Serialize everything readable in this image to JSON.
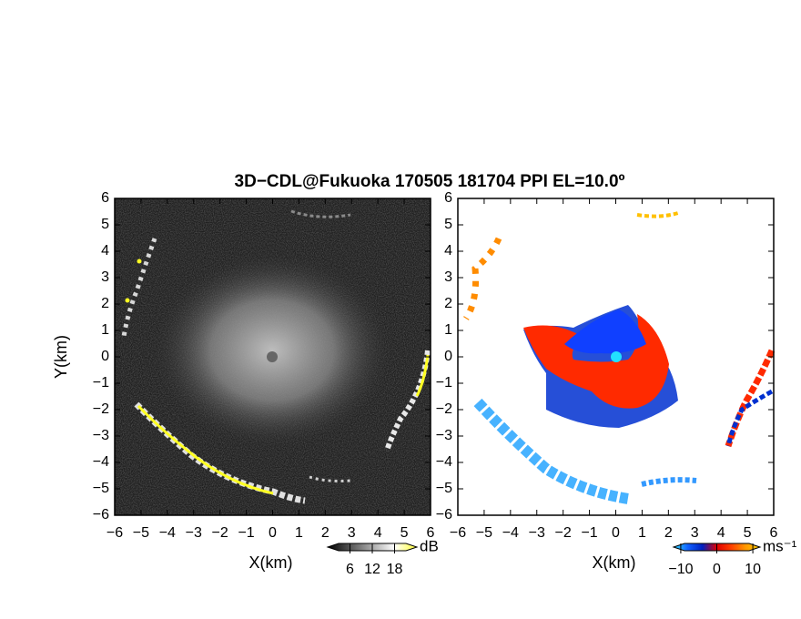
{
  "title": "3D−CDL@Fukuoka 170505 181704 PPI EL=10.0º",
  "chart_data": [
    {
      "type": "ppi",
      "xlabel": "X(km)",
      "ylabel": "Y(km)",
      "xlim": [
        -6,
        6
      ],
      "ylim": [
        -6,
        6
      ],
      "xticks": [
        {
          "value": -6,
          "label": "−6"
        },
        {
          "value": -5,
          "label": "−5"
        },
        {
          "value": -4,
          "label": "−4"
        },
        {
          "value": -3,
          "label": "−3"
        },
        {
          "value": -2,
          "label": "−2"
        },
        {
          "value": -1,
          "label": "−1"
        },
        0,
        1,
        2,
        3,
        4,
        5,
        6
      ],
      "yticks": [
        {
          "value": -6,
          "label": "−6"
        },
        {
          "value": -5,
          "label": "−5"
        },
        {
          "value": -4,
          "label": "−4"
        },
        {
          "value": -3,
          "label": "−3"
        },
        {
          "value": -2,
          "label": "−2"
        },
        {
          "value": -1,
          "label": "−1"
        },
        0,
        1,
        2,
        3,
        4,
        5,
        6
      ],
      "colorbar": {
        "label": "dB",
        "lim": [
          0,
          24
        ],
        "ticks": [
          6,
          12,
          18
        ],
        "colors": [
          "#000000",
          "#555555",
          "#aaaaaa",
          "#ffffff",
          "#ffff33"
        ]
      }
    },
    {
      "type": "ppi",
      "xlabel": "X(km)",
      "xlim": [
        -6,
        6
      ],
      "ylim": [
        -6,
        6
      ],
      "xticks": [
        {
          "value": -6,
          "label": "−6"
        },
        {
          "value": -5,
          "label": "−5"
        },
        {
          "value": -4,
          "label": "−4"
        },
        {
          "value": -3,
          "label": "−3"
        },
        {
          "value": -2,
          "label": "−2"
        },
        {
          "value": -1,
          "label": "−1"
        },
        0,
        1,
        2,
        3,
        4,
        5,
        6
      ],
      "yticks": [
        {
          "value": -6,
          "label": "−6"
        },
        {
          "value": -5,
          "label": "−5"
        },
        {
          "value": -4,
          "label": "−4"
        },
        {
          "value": -3,
          "label": "−3"
        },
        {
          "value": -2,
          "label": "−2"
        },
        {
          "value": -1,
          "label": "−1"
        },
        0,
        1,
        2,
        3,
        4,
        5,
        6
      ],
      "colorbar": {
        "label": "ms⁻¹",
        "lim": [
          -12,
          12
        ],
        "ticks": [
          {
            "value": -10,
            "label": "−10"
          },
          0,
          10
        ],
        "colors": [
          "#33ddff",
          "#1060ff",
          "#0020c0",
          "#e00000",
          "#ff4000",
          "#ff9900",
          "#ffcc00"
        ]
      }
    }
  ]
}
